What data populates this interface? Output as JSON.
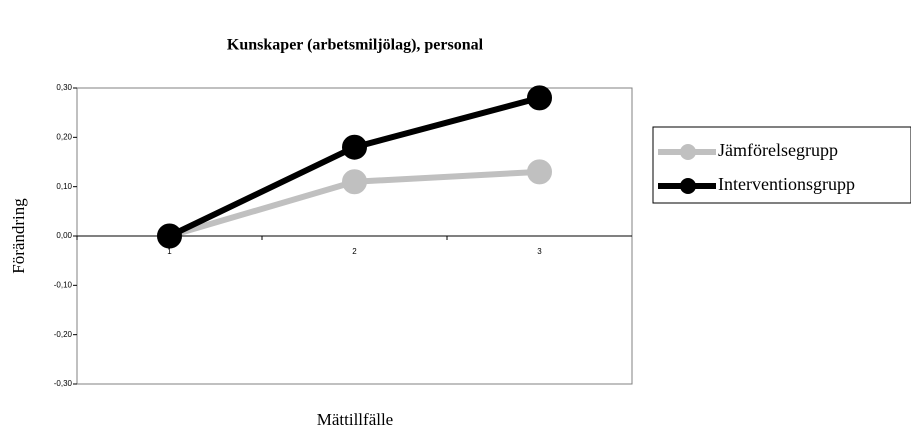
{
  "chart_data": {
    "type": "line",
    "title": "Kunskaper (arbetsmiljölag),  personal",
    "xlabel": "Mättillfälle",
    "ylabel": "Förändring",
    "categories": [
      "1",
      "2",
      "3"
    ],
    "series": [
      {
        "name": "Jämförelsegrupp",
        "color": "#c0c0c0",
        "values": [
          0,
          0.11,
          0.13
        ]
      },
      {
        "name": "Interventionsgrupp",
        "color": "#000000",
        "values": [
          0,
          0.18,
          0.28
        ]
      }
    ],
    "ylim": [
      -0.3,
      0.3
    ],
    "yticks": [
      {
        "value": -0.3,
        "label": "-0,30"
      },
      {
        "value": -0.2,
        "label": "-0,20"
      },
      {
        "value": -0.1,
        "label": "-0,10"
      },
      {
        "value": 0,
        "label": "0,00"
      },
      {
        "value": 0.1,
        "label": "0,10"
      },
      {
        "value": 0.2,
        "label": "0,20"
      },
      {
        "value": 0.3,
        "label": "0,30"
      }
    ],
    "legend": "right"
  }
}
